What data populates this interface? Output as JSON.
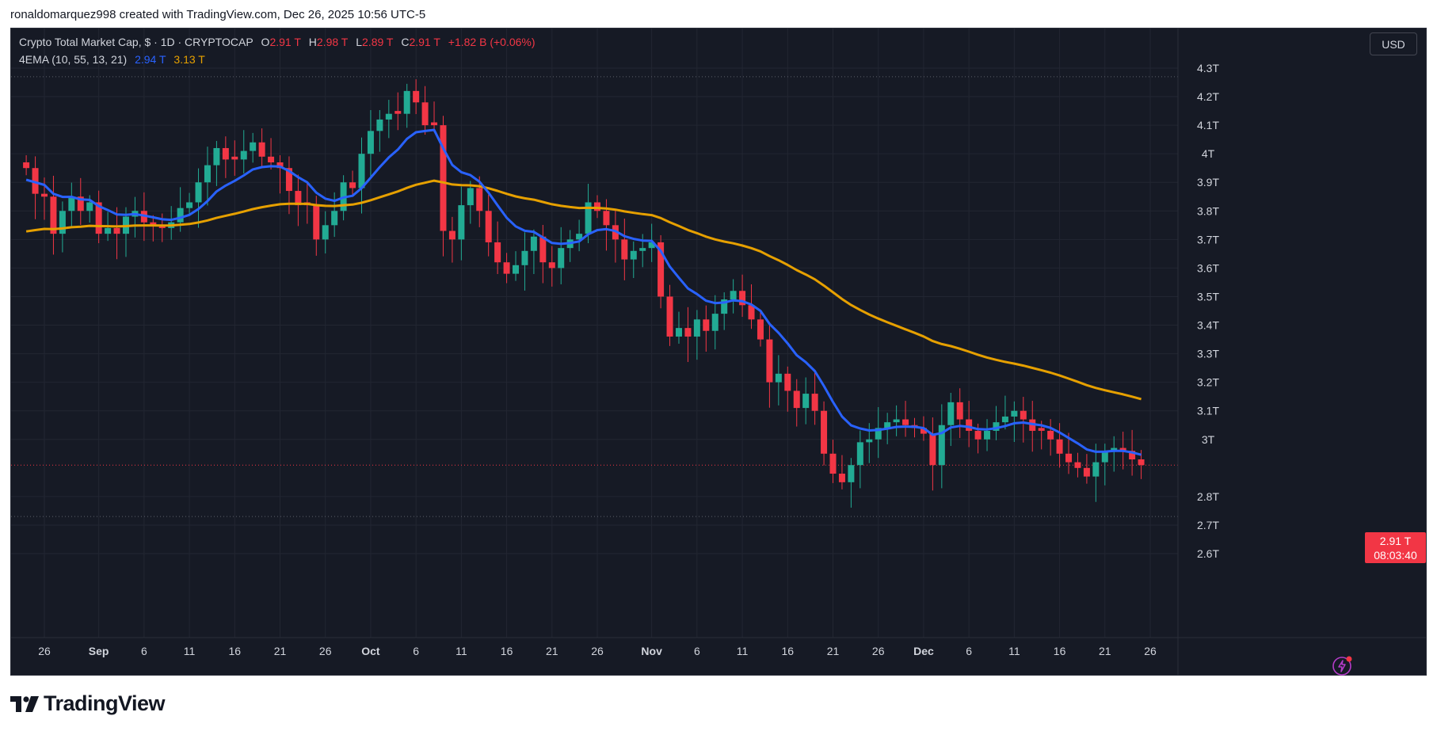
{
  "caption": "ronaldomarquez998 created with TradingView.com, Dec 26, 2025 10:56 UTC-5",
  "legend": {
    "symbol": "Crypto Total Market Cap, $ · 1D · CRYPTOCAP",
    "o_label": "O",
    "o_value": "2.91 T",
    "h_label": "H",
    "h_value": "2.98 T",
    "l_label": "L",
    "l_value": "2.89 T",
    "c_label": "C",
    "c_value": "2.91 T",
    "change": "+1.82 B (+0.06%)",
    "indicator": "4EMA (10, 55, 13, 21)",
    "ema_fast_value": "2.94 T",
    "ema_slow_value": "3.13 T"
  },
  "currency_button": "USD",
  "last_price": {
    "price": "2.91 T",
    "countdown": "08:03:40"
  },
  "logo_text": "TradingView",
  "colors": {
    "up": "#22ab94",
    "down": "#f23645",
    "ema_fast": "#2962ff",
    "ema_slow": "#e6a000",
    "background": "#161a25"
  },
  "icons": {
    "alert": "lightning-alert-icon",
    "logo": "tradingview-logo-icon"
  },
  "chart_data": {
    "type": "candlestick",
    "unit": "T",
    "x_ticks": [
      {
        "label": "26",
        "x": "2025-08-26"
      },
      {
        "label": "Sep",
        "x": "2025-09-01"
      },
      {
        "label": "6",
        "x": "2025-09-06"
      },
      {
        "label": "11",
        "x": "2025-09-11"
      },
      {
        "label": "16",
        "x": "2025-09-16"
      },
      {
        "label": "21",
        "x": "2025-09-21"
      },
      {
        "label": "26",
        "x": "2025-09-26"
      },
      {
        "label": "Oct",
        "x": "2025-10-01"
      },
      {
        "label": "6",
        "x": "2025-10-06"
      },
      {
        "label": "11",
        "x": "2025-10-11"
      },
      {
        "label": "16",
        "x": "2025-10-16"
      },
      {
        "label": "21",
        "x": "2025-10-21"
      },
      {
        "label": "26",
        "x": "2025-10-26"
      },
      {
        "label": "Nov",
        "x": "2025-11-01"
      },
      {
        "label": "6",
        "x": "2025-11-06"
      },
      {
        "label": "11",
        "x": "2025-11-11"
      },
      {
        "label": "16",
        "x": "2025-11-16"
      },
      {
        "label": "21",
        "x": "2025-11-21"
      },
      {
        "label": "26",
        "x": "2025-11-26"
      },
      {
        "label": "Dec",
        "x": "2025-12-01"
      },
      {
        "label": "6",
        "x": "2025-12-06"
      },
      {
        "label": "11",
        "x": "2025-12-11"
      },
      {
        "label": "16",
        "x": "2025-12-16"
      },
      {
        "label": "21",
        "x": "2025-12-21"
      },
      {
        "label": "26",
        "x": "2025-12-26"
      }
    ],
    "x_range": [
      "2025-08-26",
      "2025-12-26"
    ],
    "y_ticks": [
      {
        "label": "2.6T",
        "v": 2.6
      },
      {
        "label": "2.7T",
        "v": 2.7
      },
      {
        "label": "2.8T",
        "v": 2.8
      },
      {
        "label": "3T",
        "v": 3.0
      },
      {
        "label": "3.1T",
        "v": 3.1
      },
      {
        "label": "3.2T",
        "v": 3.2
      },
      {
        "label": "3.3T",
        "v": 3.3
      },
      {
        "label": "3.4T",
        "v": 3.4
      },
      {
        "label": "3.5T",
        "v": 3.5
      },
      {
        "label": "3.6T",
        "v": 3.6
      },
      {
        "label": "3.7T",
        "v": 3.7
      },
      {
        "label": "3.8T",
        "v": 3.8
      },
      {
        "label": "3.9T",
        "v": 3.9
      },
      {
        "label": "4T",
        "v": 4.0
      },
      {
        "label": "4.1T",
        "v": 4.1
      },
      {
        "label": "4.2T",
        "v": 4.2
      },
      {
        "label": "4.3T",
        "v": 4.3
      }
    ],
    "y_range": [
      2.58,
      4.36
    ],
    "high_line": 4.27,
    "low_line": 2.73,
    "grid": true,
    "close_values": [
      3.95,
      3.86,
      3.85,
      3.72,
      3.8,
      3.85,
      3.8,
      3.83,
      3.72,
      3.74,
      3.72,
      3.78,
      3.8,
      3.76,
      3.75,
      3.74,
      3.76,
      3.81,
      3.83,
      3.9,
      3.96,
      4.02,
      3.98,
      3.98,
      4.01,
      4.04,
      3.99,
      3.97,
      3.95,
      3.87,
      3.82,
      3.82,
      3.7,
      3.75,
      3.8,
      3.9,
      3.88,
      4.0,
      4.08,
      4.12,
      4.14,
      4.14,
      4.22,
      4.18,
      4.1,
      4.1,
      3.73,
      3.7,
      3.82,
      3.88,
      3.8,
      3.69,
      3.62,
      3.58,
      3.61,
      3.66,
      3.71,
      3.62,
      3.6,
      3.67,
      3.7,
      3.72,
      3.83,
      3.8,
      3.75,
      3.7,
      3.63,
      3.66,
      3.67,
      3.69,
      3.5,
      3.36,
      3.39,
      3.36,
      3.42,
      3.38,
      3.44,
      3.49,
      3.52,
      3.47,
      3.42,
      3.35,
      3.2,
      3.23,
      3.17,
      3.11,
      3.16,
      3.1,
      2.95,
      2.88,
      2.85,
      2.91,
      2.99,
      3.0,
      3.04,
      3.06,
      3.07,
      3.05,
      3.04,
      3.02,
      2.91,
      3.05,
      3.13,
      3.07,
      3.03,
      3.0,
      3.03,
      3.06,
      3.08,
      3.1,
      3.07,
      3.03,
      3.03,
      3.0,
      2.95,
      2.92,
      2.9,
      2.87,
      2.92,
      2.96,
      2.97,
      2.96,
      2.93,
      2.91
    ],
    "series": [
      {
        "name": "4EMA fast",
        "value_last": 2.94
      },
      {
        "name": "4EMA slow",
        "value_last": 3.13
      }
    ],
    "last_close": 2.91
  }
}
